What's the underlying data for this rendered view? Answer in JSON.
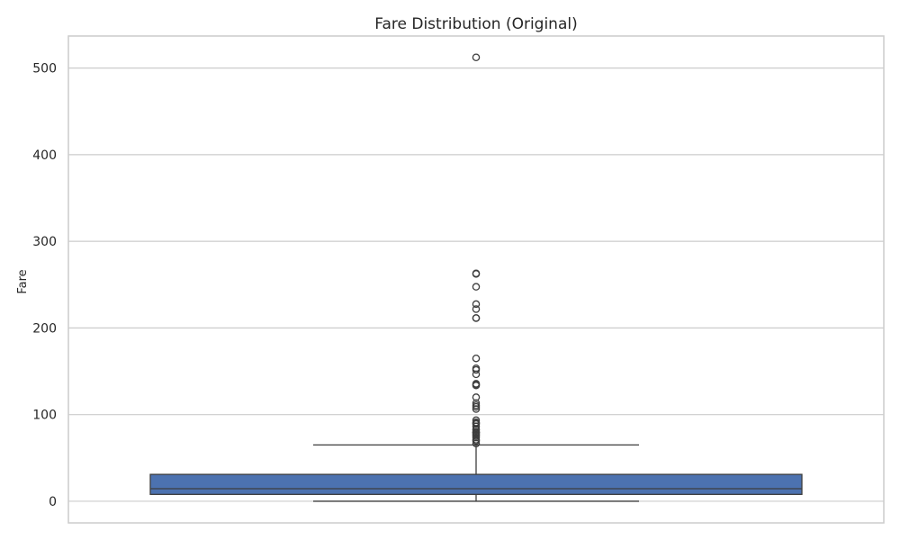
{
  "chart_data": {
    "type": "box",
    "title": "Fare Distribution (Original)",
    "xlabel": "",
    "ylabel": "Fare",
    "ylim": [
      -25,
      537
    ],
    "yticks": [
      0,
      100,
      200,
      300,
      400,
      500
    ],
    "grid": true,
    "series": [
      {
        "values_summary": {
          "min": 0,
          "q1": 7.9,
          "median": 14.45,
          "q3": 31.0,
          "whisker_high": 65.0
        },
        "outliers": [
          66.6,
          69.55,
          71.0,
          73.5,
          75.25,
          76.73,
          77.96,
          79.2,
          79.65,
          80.0,
          82.17,
          83.16,
          86.5,
          89.1,
          90.0,
          91.08,
          93.5,
          106.43,
          108.9,
          110.88,
          113.28,
          120.0,
          133.65,
          134.5,
          135.63,
          146.52,
          151.55,
          153.46,
          164.87,
          211.34,
          211.5,
          221.78,
          227.52,
          247.52,
          262.38,
          263.0,
          512.33
        ]
      }
    ],
    "colors": {
      "box_fill": "#4c72b0",
      "line": "#3d3d3d",
      "grid": "#cccccc",
      "frame": "#cccccc"
    }
  }
}
